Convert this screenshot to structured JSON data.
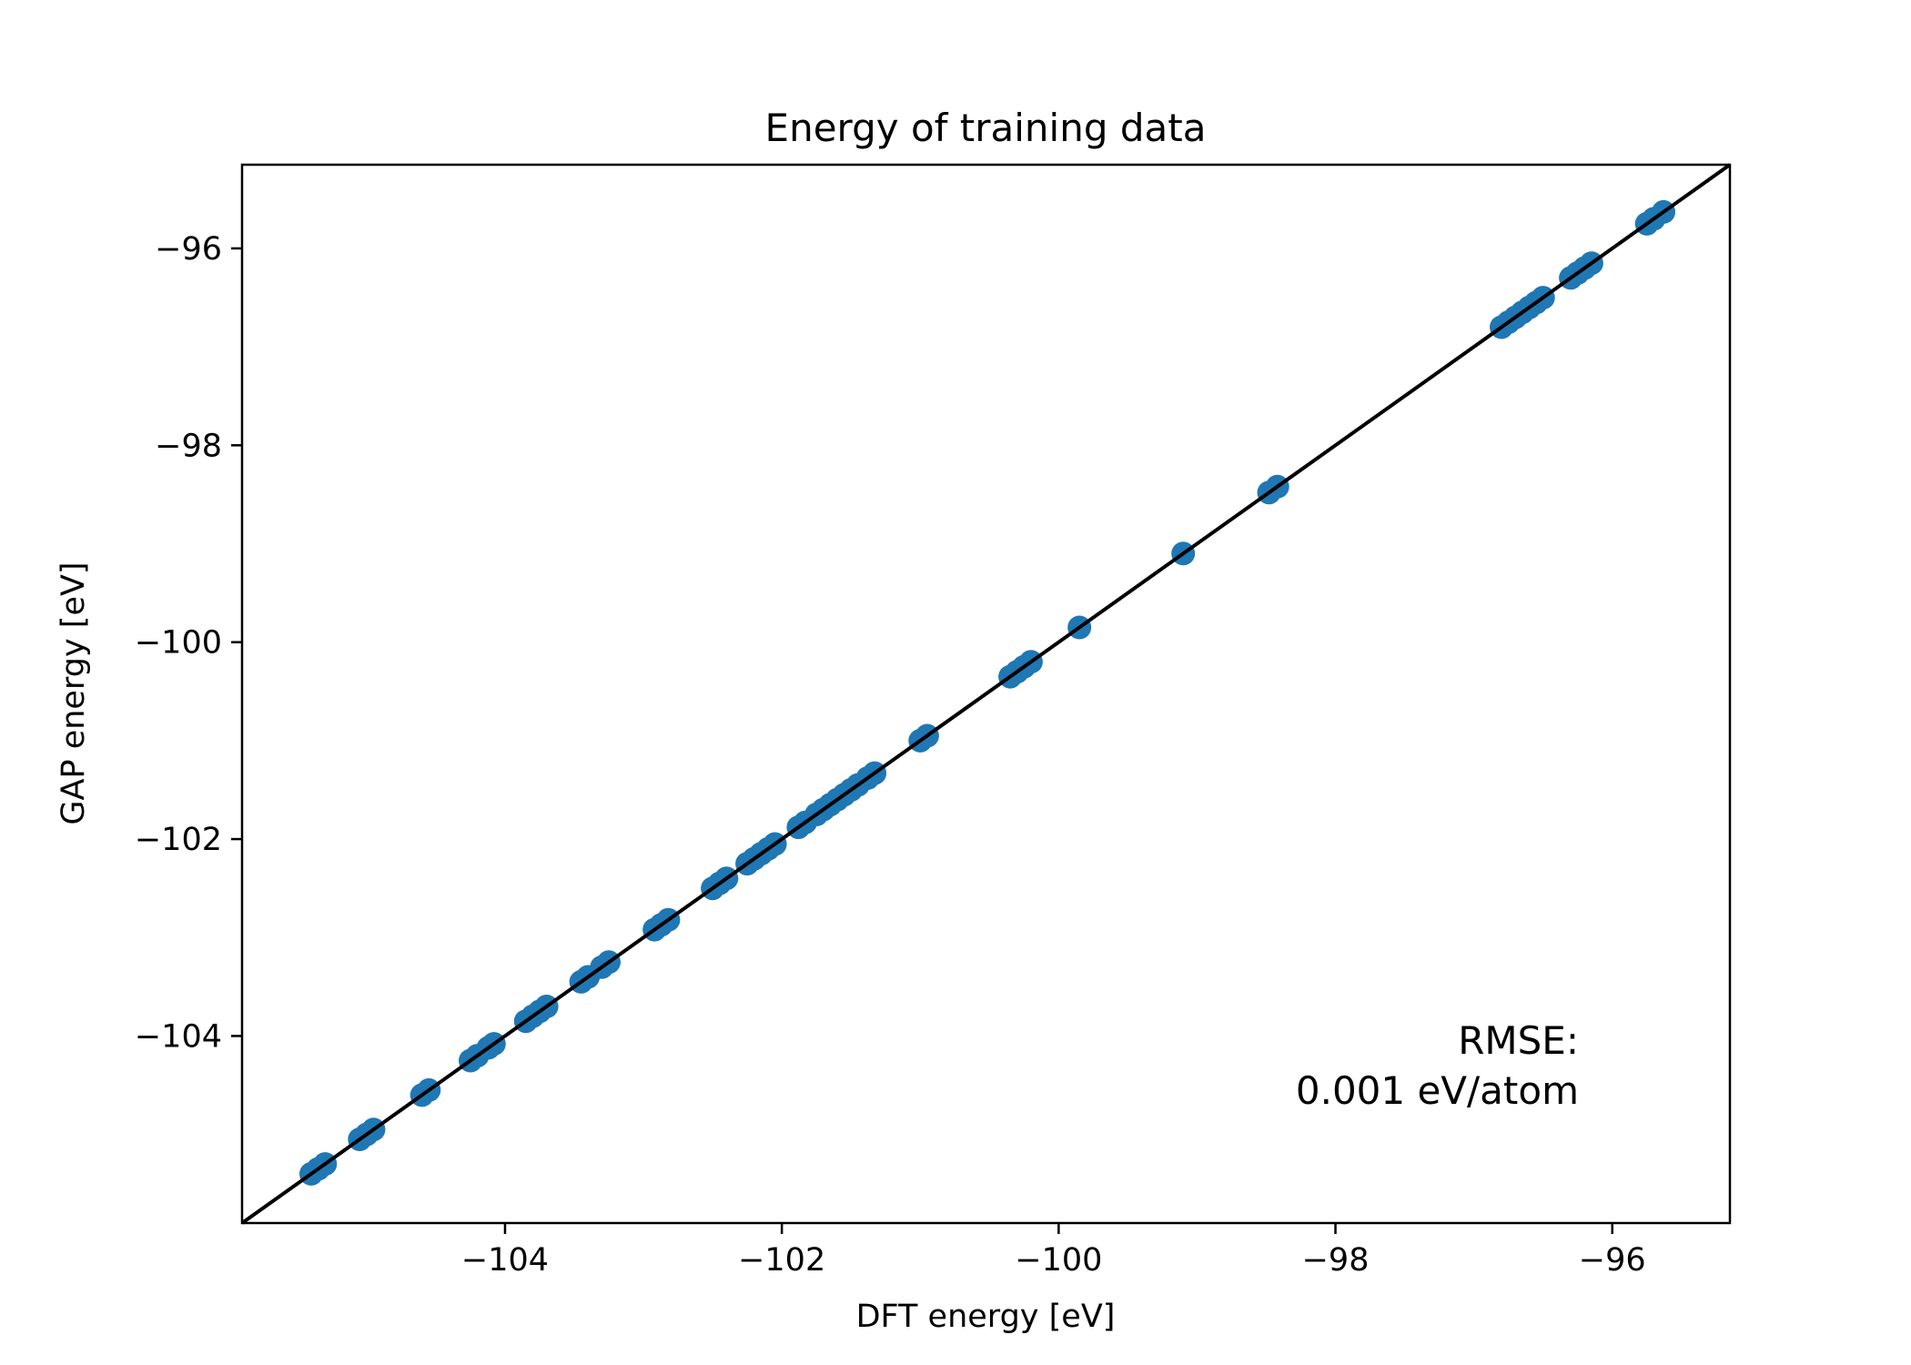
{
  "chart_data": {
    "type": "scatter",
    "title": "Energy of training data",
    "xlabel": "DFT energy [eV]",
    "ylabel": "GAP energy [eV]",
    "xlim": [
      -105.9,
      -95.15
    ],
    "ylim": [
      -105.9,
      -95.15
    ],
    "xticks": [
      -104,
      -102,
      -100,
      -98,
      -96
    ],
    "yticks": [
      -104,
      -102,
      -100,
      -98,
      -96
    ],
    "xtick_labels": [
      "−104",
      "−102",
      "−100",
      "−98",
      "−96"
    ],
    "ytick_labels": [
      "−104",
      "−102",
      "−100",
      "−98",
      "−96"
    ],
    "grid": false,
    "reference_line": {
      "name": "y = x",
      "color": "#000000"
    },
    "series": [
      {
        "name": "training data",
        "color": "#1f77b4",
        "points": [
          [
            -105.4,
            -105.4
          ],
          [
            -105.35,
            -105.35
          ],
          [
            -105.3,
            -105.3
          ],
          [
            -105.05,
            -105.05
          ],
          [
            -105.0,
            -105.0
          ],
          [
            -104.95,
            -104.95
          ],
          [
            -104.6,
            -104.6
          ],
          [
            -104.55,
            -104.55
          ],
          [
            -104.25,
            -104.25
          ],
          [
            -104.2,
            -104.2
          ],
          [
            -104.12,
            -104.12
          ],
          [
            -104.08,
            -104.08
          ],
          [
            -103.85,
            -103.85
          ],
          [
            -103.8,
            -103.8
          ],
          [
            -103.75,
            -103.75
          ],
          [
            -103.7,
            -103.7
          ],
          [
            -103.45,
            -103.45
          ],
          [
            -103.4,
            -103.4
          ],
          [
            -103.3,
            -103.3
          ],
          [
            -103.25,
            -103.25
          ],
          [
            -102.92,
            -102.92
          ],
          [
            -102.87,
            -102.87
          ],
          [
            -102.82,
            -102.82
          ],
          [
            -102.5,
            -102.5
          ],
          [
            -102.45,
            -102.45
          ],
          [
            -102.4,
            -102.4
          ],
          [
            -102.25,
            -102.25
          ],
          [
            -102.2,
            -102.2
          ],
          [
            -102.15,
            -102.15
          ],
          [
            -102.1,
            -102.1
          ],
          [
            -102.05,
            -102.05
          ],
          [
            -101.88,
            -101.88
          ],
          [
            -101.83,
            -101.83
          ],
          [
            -101.75,
            -101.75
          ],
          [
            -101.7,
            -101.7
          ],
          [
            -101.65,
            -101.65
          ],
          [
            -101.6,
            -101.6
          ],
          [
            -101.55,
            -101.55
          ],
          [
            -101.5,
            -101.5
          ],
          [
            -101.45,
            -101.45
          ],
          [
            -101.38,
            -101.38
          ],
          [
            -101.33,
            -101.33
          ],
          [
            -101.0,
            -101.0
          ],
          [
            -100.95,
            -100.95
          ],
          [
            -100.35,
            -100.35
          ],
          [
            -100.3,
            -100.3
          ],
          [
            -100.25,
            -100.25
          ],
          [
            -100.2,
            -100.2
          ],
          [
            -99.85,
            -99.85
          ],
          [
            -99.1,
            -99.1
          ],
          [
            -98.48,
            -98.48
          ],
          [
            -98.42,
            -98.42
          ],
          [
            -96.8,
            -96.8
          ],
          [
            -96.75,
            -96.75
          ],
          [
            -96.7,
            -96.7
          ],
          [
            -96.65,
            -96.65
          ],
          [
            -96.6,
            -96.6
          ],
          [
            -96.55,
            -96.55
          ],
          [
            -96.5,
            -96.5
          ],
          [
            -96.3,
            -96.3
          ],
          [
            -96.25,
            -96.25
          ],
          [
            -96.2,
            -96.2
          ],
          [
            -96.15,
            -96.15
          ],
          [
            -95.75,
            -95.75
          ],
          [
            -95.7,
            -95.7
          ],
          [
            -95.63,
            -95.63
          ]
        ]
      }
    ],
    "annotation": {
      "line1": "RMSE:",
      "line2": "0.001 eV/atom",
      "placement": "bottom-right"
    }
  }
}
